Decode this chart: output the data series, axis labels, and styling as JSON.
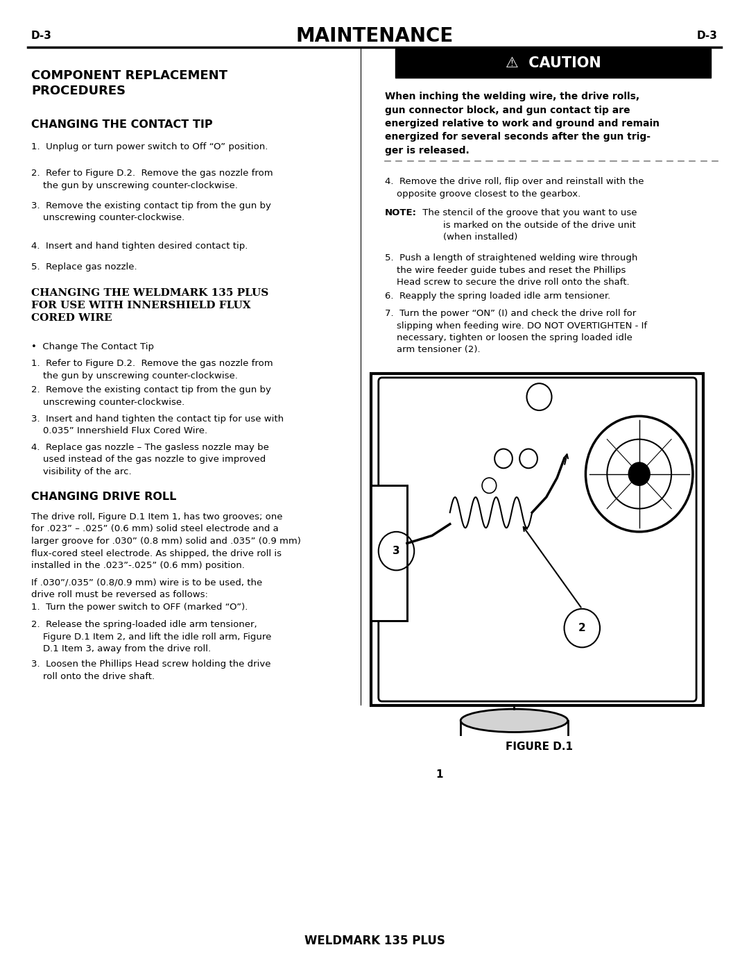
{
  "page_width": 10.8,
  "page_height": 13.97,
  "bg_color": "#ffffff",
  "header": {
    "left_label": "D-3",
    "center_label": "MAINTENANCE",
    "right_label": "D-3"
  },
  "left_col": {
    "section1_title": "COMPONENT REPLACEMENT\nPROCEDURES",
    "section2_title": "CHANGING THE CONTACT TIP",
    "contact_tip_steps": [
      "1.  Unplug or turn power switch to Off “O” position.",
      "2.  Refer to Figure D.2.  Remove the gas nozzle from\n    the gun by unscrewing counter-clockwise.",
      "3.  Remove the existing contact tip from the gun by\n    unscrewing counter-clockwise.",
      "4.  Insert and hand tighten desired contact tip.",
      "5.  Replace gas nozzle."
    ],
    "section3_title": "CHANGING THE WELDMARK 135 PLUS\nFOR USE WITH INNERSHIELD FLUX\nCORED WIRE",
    "weldmark_bullet": "•  Change The Contact Tip",
    "weldmark_steps": [
      "1.  Refer to Figure D.2.  Remove the gas nozzle from\n    the gun by unscrewing counter-clockwise.",
      "2.  Remove the existing contact tip from the gun by\n    unscrewing counter-clockwise.",
      "3.  Insert and hand tighten the contact tip for use with\n    0.035” Innershield Flux Cored Wire.",
      "4.  Replace gas nozzle – The gasless nozzle may be\n    used instead of the gas nozzle to give improved\n    visibility of the arc."
    ],
    "section4_title": "CHANGING DRIVE ROLL",
    "drive_roll_para1": "The drive roll, Figure D.1 Item 1, has two grooves; one\nfor .023” – .025” (0.6 mm) solid steel electrode and a\nlarger groove for .030” (0.8 mm) solid and .035” (0.9 mm)\nflux-cored steel electrode. As shipped, the drive roll is\ninstalled in the .023”-.025” (0.6 mm) position.",
    "drive_roll_para2": "If .030”/.035” (0.8/0.9 mm) wire is to be used, the\ndrive roll must be reversed as follows:",
    "drive_roll_steps": [
      "1.  Turn the power switch to OFF (marked “O”).",
      "2.  Release the spring-loaded idle arm tensioner,\n    Figure D.1 Item 2, and lift the idle roll arm, Figure\n    D.1 Item 3, away from the drive roll.",
      "3.  Loosen the Phillips Head screw holding the drive\n    roll onto the drive shaft."
    ]
  },
  "right_col": {
    "caution_title": "⚠  CAUTION",
    "caution_text": "When inching the welding wire, the drive rolls,\ngun connector block, and gun contact tip are\nenergized relative to work and ground and remain\nenergized for several seconds after the gun trig-\nger is released.",
    "step4": "4.  Remove the drive roll, flip over and reinstall with the\n    opposite groove closest to the gearbox.",
    "note_label": "NOTE:",
    "note_text": " The stencil of the groove that you want to use\n        is marked on the outside of the drive unit\n        (when installed)",
    "step5": "5.  Push a length of straightened welding wire through\n    the wire feeder guide tubes and reset the Phillips\n    Head screw to secure the drive roll onto the shaft.",
    "step6": "6.  Reapply the spring loaded idle arm tensioner.",
    "step7": "7.  Turn the power “ON” (I) and check the drive roll for\n    slipping when feeding wire. DO NOT OVERTIGHTEN - If\n    necessary, tighten or loosen the spring loaded idle\n    arm tensioner (2).",
    "figure_label": "FIGURE D.1"
  },
  "footer": "WELDMARK 135 PLUS"
}
